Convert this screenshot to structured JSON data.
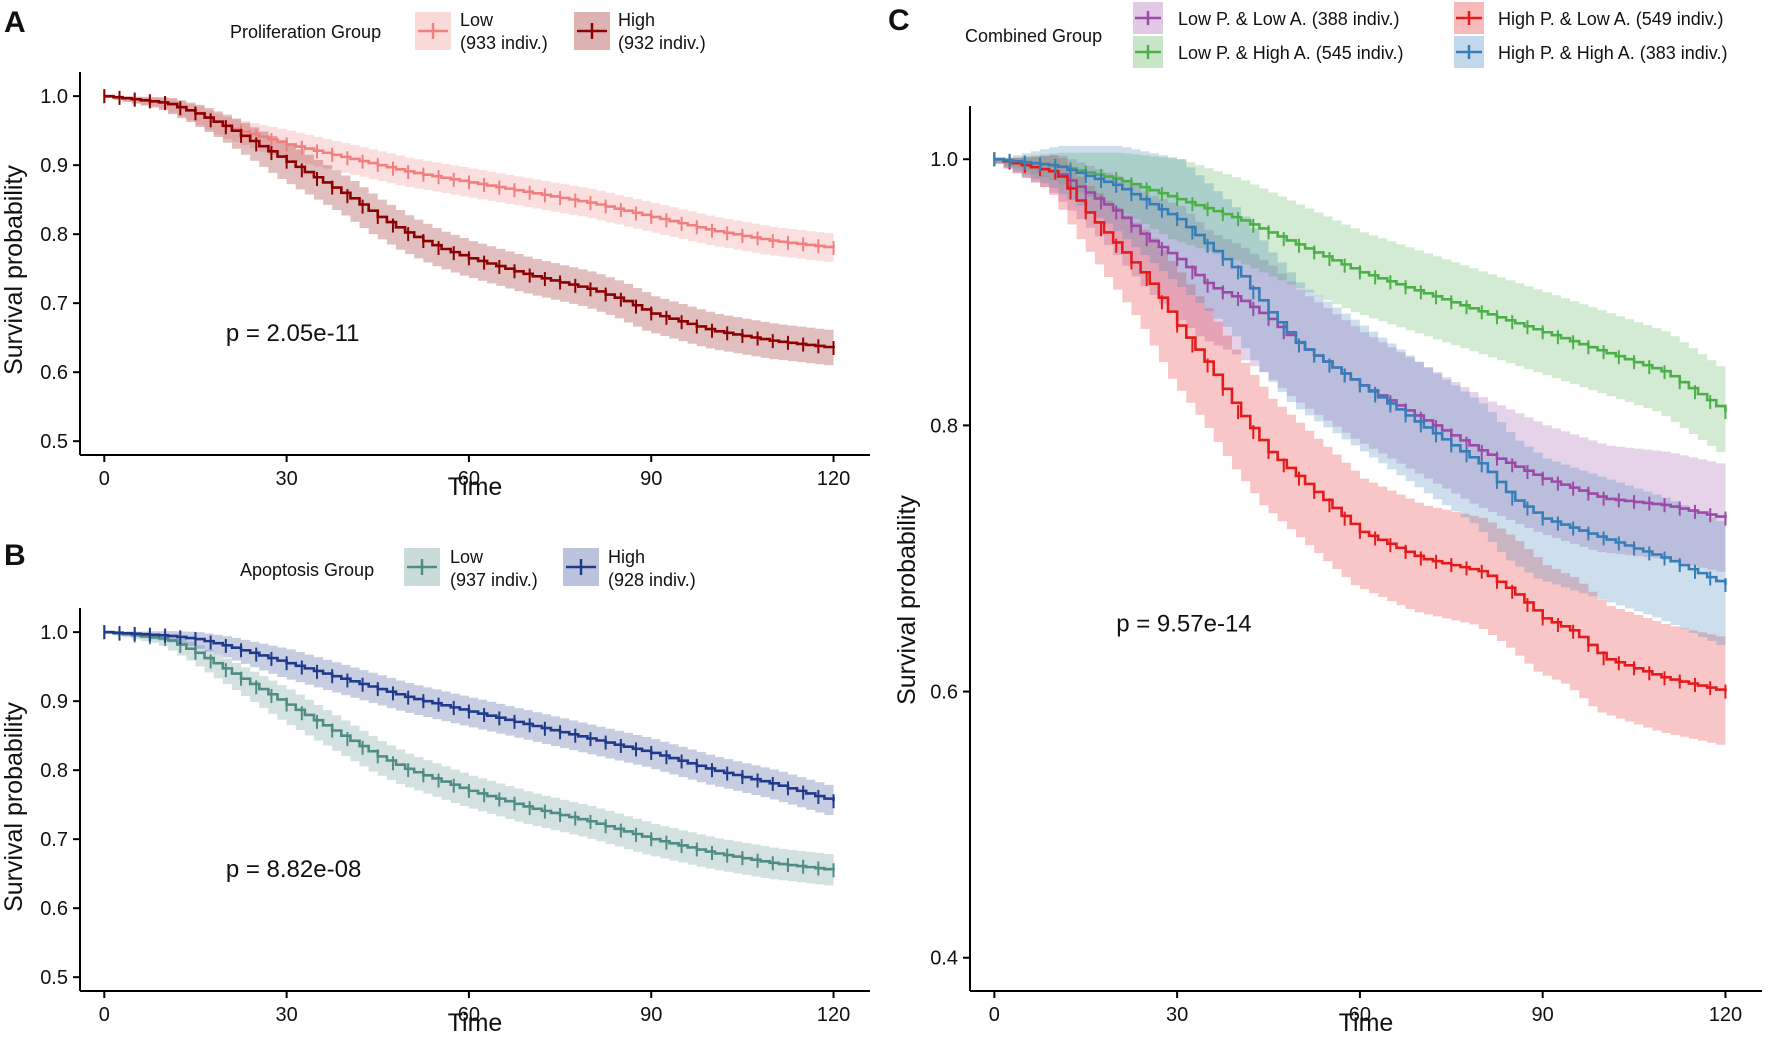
{
  "chart_data": [
    {
      "panel": "A",
      "type": "line",
      "subtype": "kaplan-meier survival curve with confidence bands",
      "xlabel": "Time",
      "ylabel": "Survival probability",
      "xlim": [
        0,
        120
      ],
      "ylim": [
        0.5,
        1.0
      ],
      "xticks": [
        0,
        30,
        60,
        90,
        120
      ],
      "yticks": [
        0.5,
        0.6,
        0.7,
        0.8,
        0.9,
        1.0
      ],
      "xtick_labels": [
        "0",
        "30",
        "60",
        "90",
        "120"
      ],
      "ytick_labels": [
        "0.5",
        "0.6",
        "0.7",
        "0.8",
        "0.9",
        "1.0"
      ],
      "annotation": "p = 2.05e-11",
      "annotation_pos": [
        20,
        0.645
      ],
      "legend": {
        "title": "Proliferation Group",
        "placement": "top"
      },
      "series": [
        {
          "name": "Low",
          "count": "(933 indiv.)",
          "color": "#F08080",
          "x": [
            0,
            10,
            15,
            20,
            30,
            40,
            50,
            60,
            70,
            80,
            90,
            100,
            110,
            120
          ],
          "y": [
            1.0,
            0.99,
            0.975,
            0.955,
            0.93,
            0.91,
            0.89,
            0.875,
            0.86,
            0.845,
            0.825,
            0.805,
            0.79,
            0.78
          ],
          "ci_halfwidth": 0.02
        },
        {
          "name": "High",
          "count": "(932 indiv.)",
          "color": "#8B0000",
          "x": [
            0,
            10,
            15,
            20,
            25,
            30,
            35,
            40,
            45,
            50,
            55,
            60,
            70,
            80,
            85,
            90,
            100,
            110,
            120
          ],
          "y": [
            1.0,
            0.99,
            0.975,
            0.955,
            0.93,
            0.905,
            0.88,
            0.855,
            0.825,
            0.8,
            0.78,
            0.765,
            0.74,
            0.72,
            0.705,
            0.685,
            0.66,
            0.645,
            0.635
          ],
          "ci_halfwidth": 0.025
        }
      ]
    },
    {
      "panel": "B",
      "type": "line",
      "subtype": "kaplan-meier survival curve with confidence bands",
      "xlabel": "Time",
      "ylabel": "Survival probability",
      "xlim": [
        0,
        120
      ],
      "ylim": [
        0.5,
        1.0
      ],
      "xticks": [
        0,
        30,
        60,
        90,
        120
      ],
      "yticks": [
        0.5,
        0.6,
        0.7,
        0.8,
        0.9,
        1.0
      ],
      "xtick_labels": [
        "0",
        "30",
        "60",
        "90",
        "120"
      ],
      "ytick_labels": [
        "0.5",
        "0.6",
        "0.7",
        "0.8",
        "0.9",
        "1.0"
      ],
      "annotation": "p = 8.82e-08",
      "annotation_pos": [
        20,
        0.645
      ],
      "legend": {
        "title": "Apoptosis Group",
        "placement": "top"
      },
      "series": [
        {
          "name": "Low",
          "count": "(937 indiv.)",
          "color": "#4F8C86",
          "x": [
            0,
            10,
            15,
            20,
            25,
            30,
            35,
            40,
            45,
            50,
            55,
            60,
            70,
            80,
            90,
            100,
            110,
            120
          ],
          "y": [
            1.0,
            0.99,
            0.97,
            0.945,
            0.92,
            0.895,
            0.87,
            0.845,
            0.82,
            0.8,
            0.785,
            0.77,
            0.745,
            0.725,
            0.7,
            0.68,
            0.665,
            0.655
          ],
          "ci_halfwidth": 0.022
        },
        {
          "name": "High",
          "count": "(928 indiv.)",
          "color": "#1F3A8A",
          "x": [
            0,
            10,
            15,
            20,
            30,
            40,
            50,
            60,
            70,
            80,
            90,
            100,
            110,
            120
          ],
          "y": [
            1.0,
            0.995,
            0.99,
            0.98,
            0.955,
            0.93,
            0.905,
            0.885,
            0.865,
            0.845,
            0.825,
            0.8,
            0.78,
            0.755
          ],
          "ci_halfwidth": 0.02
        }
      ]
    },
    {
      "panel": "C",
      "type": "line",
      "subtype": "kaplan-meier survival curve with confidence bands",
      "xlabel": "Time",
      "ylabel": "Survival probability",
      "xlim": [
        0,
        120
      ],
      "ylim": [
        0.4,
        1.0
      ],
      "xticks": [
        0,
        30,
        60,
        90,
        120
      ],
      "yticks": [
        0.4,
        0.6,
        0.8,
        1.0
      ],
      "xtick_labels": [
        "0",
        "30",
        "60",
        "90",
        "120"
      ],
      "ytick_labels": [
        "0.4",
        "0.6",
        "0.8",
        "1.0"
      ],
      "annotation": "p = 9.57e-14",
      "annotation_pos": [
        20,
        0.645
      ],
      "legend": {
        "title": "Combined Group",
        "placement": "top"
      },
      "series": [
        {
          "name": "Low P. & Low A. (388 indiv.)",
          "color": "#9B4AA8",
          "x": [
            0,
            10,
            20,
            25,
            30,
            35,
            40,
            45,
            50,
            55,
            60,
            70,
            80,
            90,
            100,
            110,
            120
          ],
          "y": [
            1.0,
            0.99,
            0.96,
            0.94,
            0.925,
            0.905,
            0.895,
            0.88,
            0.86,
            0.845,
            0.83,
            0.805,
            0.78,
            0.76,
            0.745,
            0.74,
            0.73
          ],
          "ci_halfwidth": 0.04
        },
        {
          "name": "High P. & Low A. (549 indiv.)",
          "color": "#E41A1C",
          "x": [
            0,
            10,
            15,
            20,
            25,
            30,
            35,
            40,
            45,
            50,
            55,
            60,
            65,
            70,
            80,
            85,
            90,
            95,
            100,
            110,
            120
          ],
          "y": [
            1.0,
            0.99,
            0.96,
            0.935,
            0.91,
            0.875,
            0.845,
            0.81,
            0.78,
            0.76,
            0.74,
            0.72,
            0.71,
            0.7,
            0.69,
            0.675,
            0.655,
            0.645,
            0.625,
            0.61,
            0.6
          ],
          "ci_halfwidth": 0.04
        },
        {
          "name": "Low P. & High A. (545 indiv.)",
          "color": "#4DAF4A",
          "x": [
            0,
            10,
            20,
            30,
            40,
            50,
            60,
            70,
            80,
            90,
            100,
            110,
            120
          ],
          "y": [
            1.0,
            0.995,
            0.985,
            0.97,
            0.955,
            0.935,
            0.915,
            0.9,
            0.885,
            0.87,
            0.855,
            0.84,
            0.81
          ],
          "ci_halfwidth": 0.03
        },
        {
          "name": "High P. & High A. (383 indiv.)",
          "color": "#377EB8",
          "x": [
            0,
            10,
            20,
            30,
            40,
            45,
            50,
            60,
            70,
            80,
            85,
            90,
            100,
            110,
            120
          ],
          "y": [
            1.0,
            0.995,
            0.98,
            0.955,
            0.915,
            0.885,
            0.86,
            0.83,
            0.8,
            0.77,
            0.745,
            0.73,
            0.715,
            0.7,
            0.68
          ],
          "ci_halfwidth": 0.045
        }
      ]
    }
  ]
}
